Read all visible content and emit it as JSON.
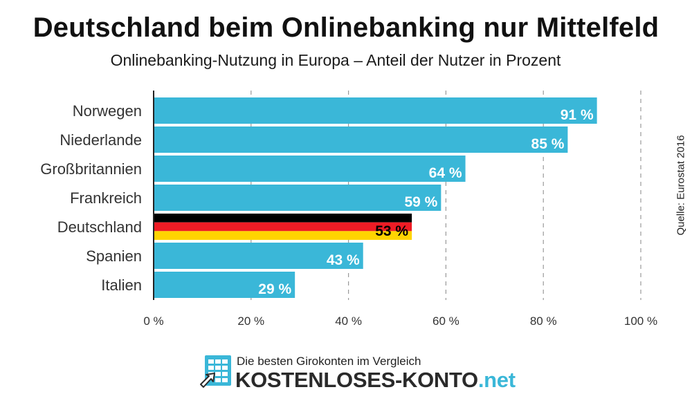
{
  "header": {
    "title": "Deutschland beim Onlinebanking nur Mittelfeld",
    "subtitle": "Onlinebanking-Nutzung in Europa – Anteil der Nutzer in Prozent"
  },
  "source": "Quelle: Eurostat 2016",
  "brand": {
    "tagline": "Die besten Girokonten im Vergleich",
    "name": "KOSTENLOSES-KONTO",
    "tld": ".net"
  },
  "colors": {
    "bar": "#3ab7d8",
    "flag_black": "#000000",
    "flag_red": "#ee1c25",
    "flag_gold": "#ffd400",
    "grid": "#999999",
    "axis": "#222222"
  },
  "chart_data": {
    "type": "bar",
    "orientation": "horizontal",
    "categories": [
      "Norwegen",
      "Niederlande",
      "Großbritannien",
      "Frankreich",
      "Deutschland",
      "Spanien",
      "Italien"
    ],
    "values": [
      91,
      85,
      64,
      59,
      53,
      43,
      29
    ],
    "value_labels": [
      "91 %",
      "85 %",
      "64 %",
      "59 %",
      "53 %",
      "43 %",
      "29 %"
    ],
    "highlight": "Deutschland",
    "xlim": [
      0,
      100
    ],
    "xticks": [
      0,
      20,
      40,
      60,
      80,
      100
    ],
    "xtick_labels": [
      "0 %",
      "20 %",
      "40 %",
      "60 %",
      "80 %",
      "100 %"
    ],
    "grid": true,
    "legend": "none"
  }
}
